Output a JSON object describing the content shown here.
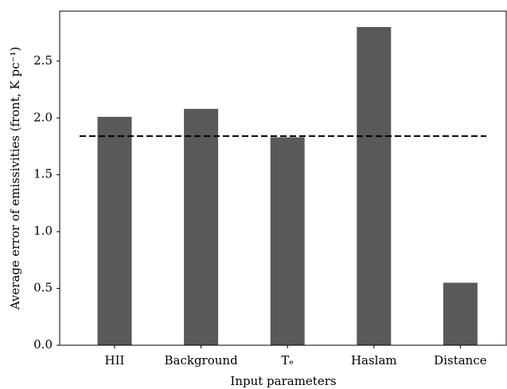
{
  "chart_data": {
    "type": "bar",
    "categories": [
      "HII",
      "Background",
      "Tₑ",
      "Haslam",
      "Distance"
    ],
    "values": [
      2.01,
      2.08,
      1.83,
      2.8,
      0.55
    ],
    "color": "#595959",
    "reference_line": 1.84,
    "x_label": "Input parameters",
    "y_label": "Average error of emissivities (front, K pc⁻¹)",
    "ylim": [
      0,
      2.94
    ],
    "yticks": [
      {
        "value": 0,
        "label": "0.0"
      },
      {
        "value": 0.5,
        "label": "0.5"
      },
      {
        "value": 1,
        "label": "1.0"
      },
      {
        "value": 1.5,
        "label": "1.5"
      },
      {
        "value": 2,
        "label": "2.0"
      },
      {
        "value": 2.5,
        "label": "2.5"
      }
    ],
    "grid": false
  }
}
